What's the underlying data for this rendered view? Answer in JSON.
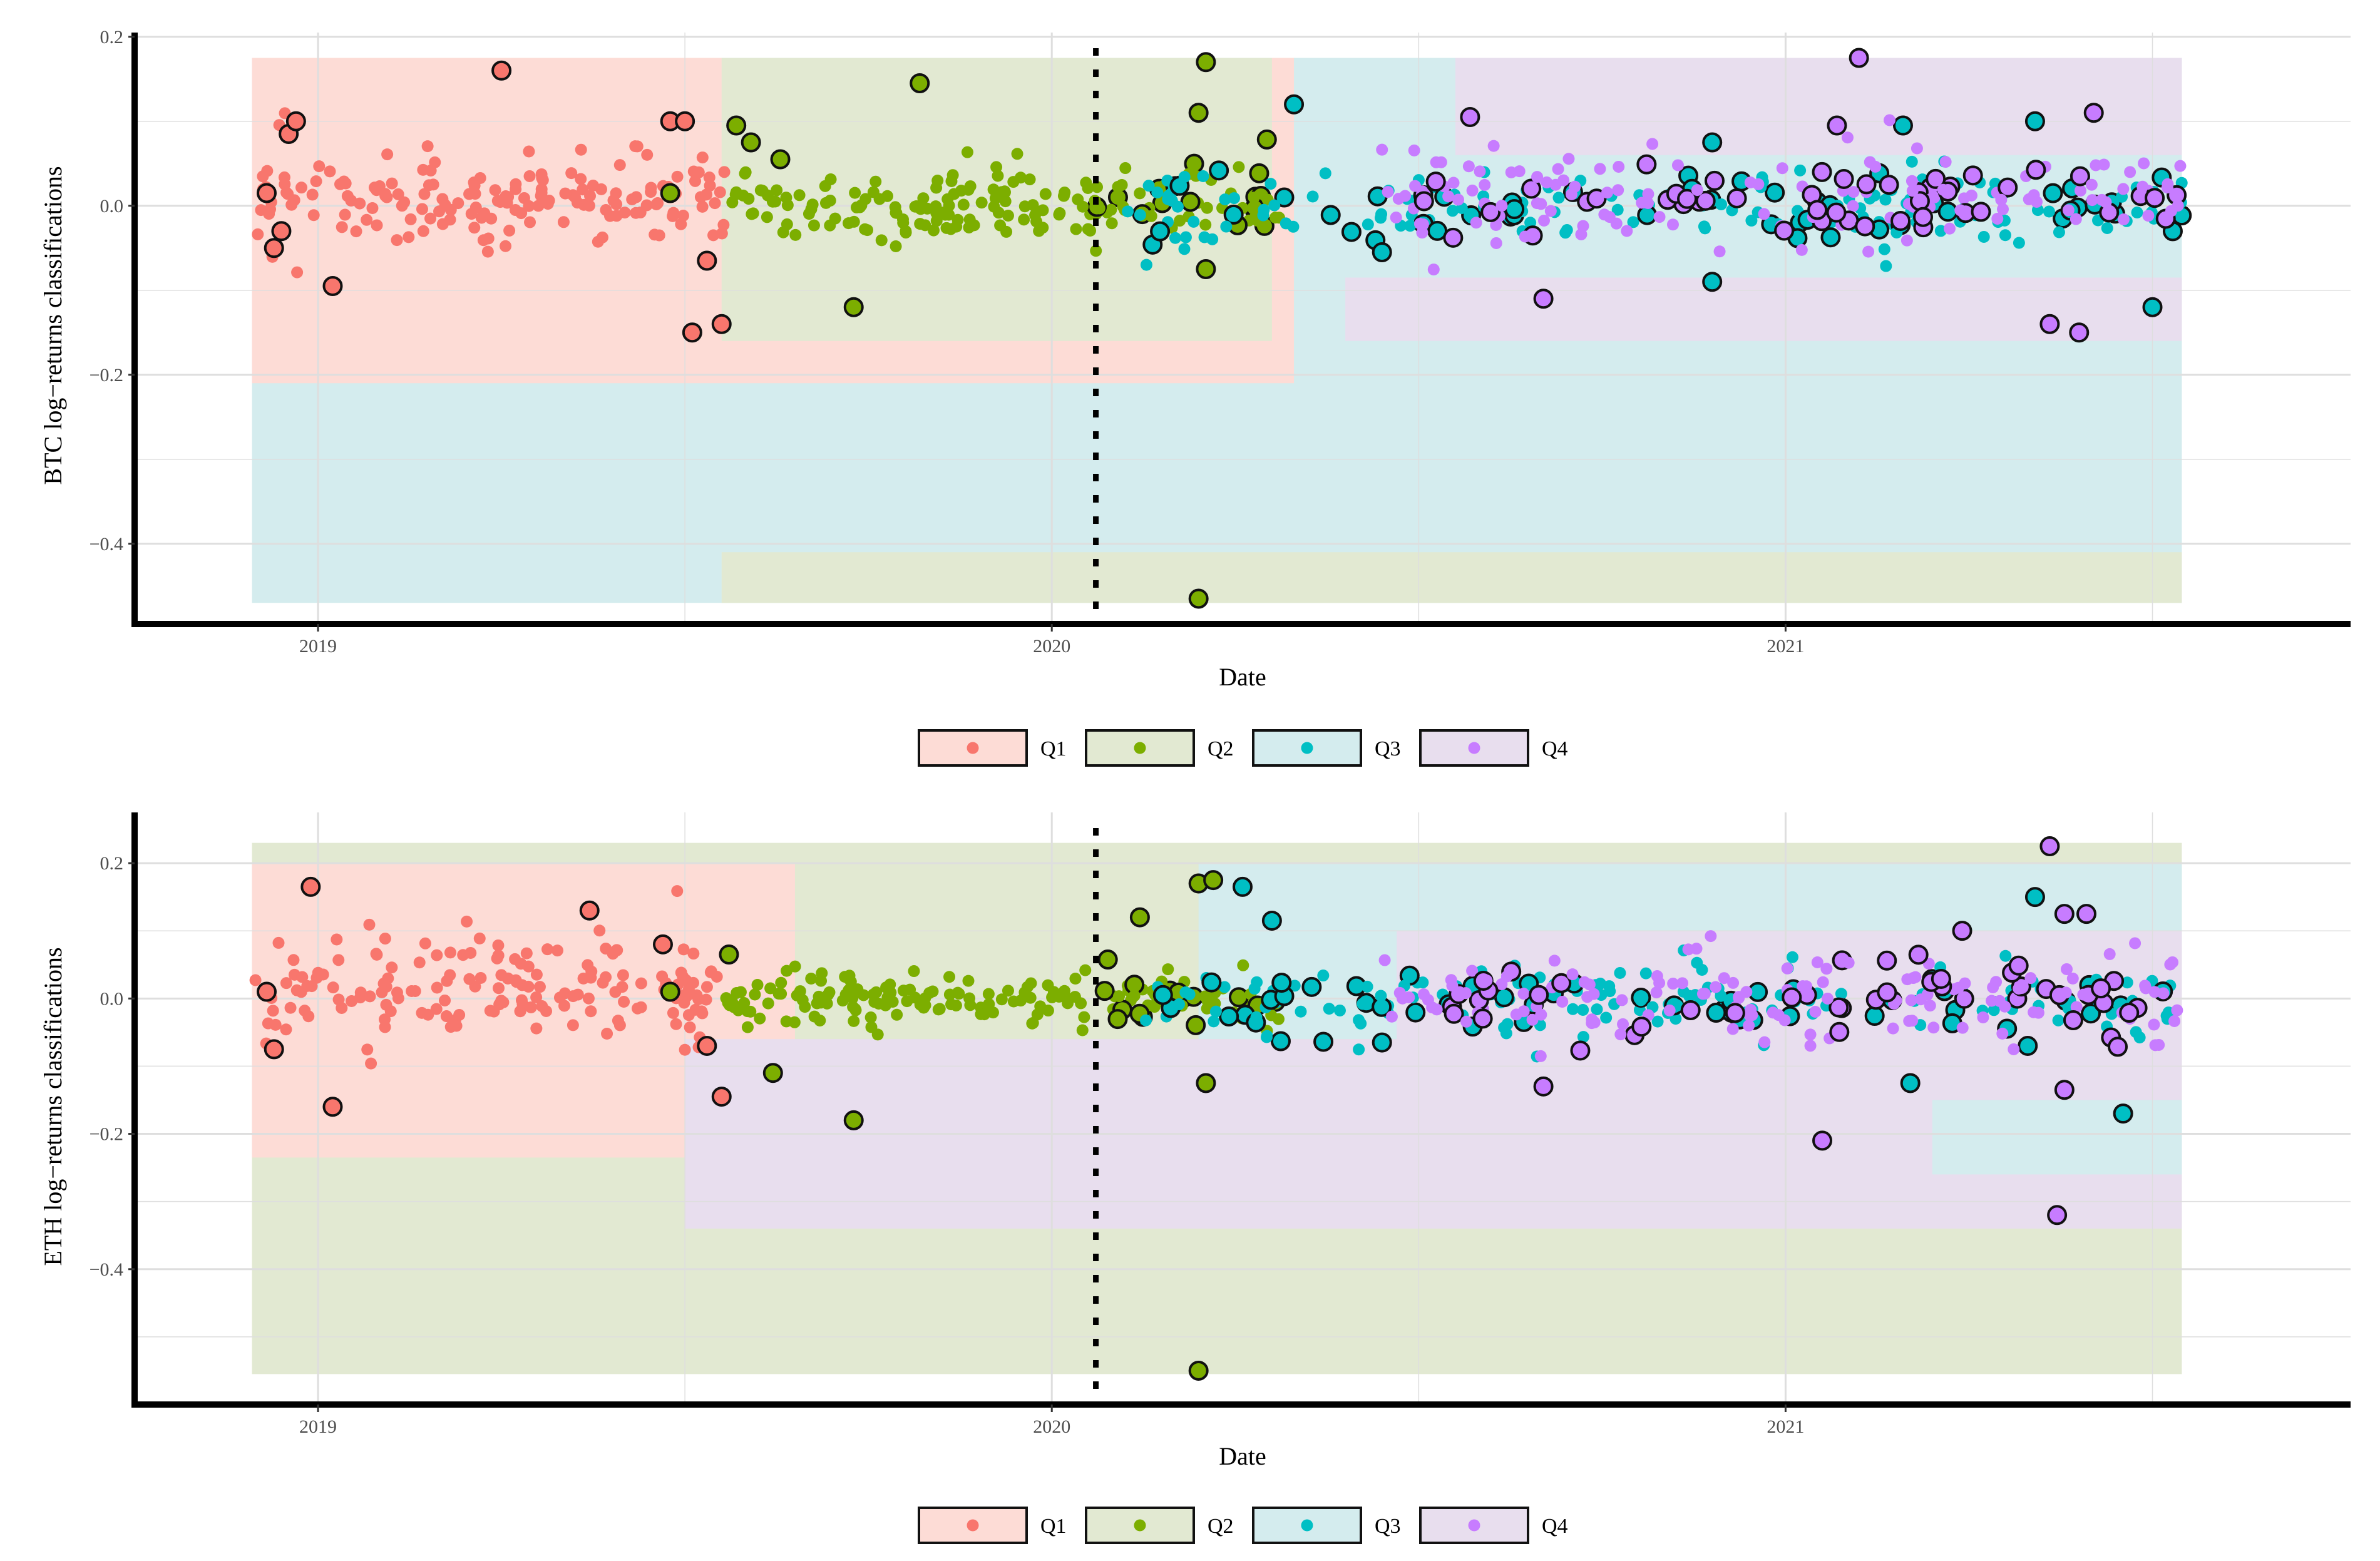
{
  "chart_data": [
    {
      "type": "scatter",
      "panel": "BTC",
      "xlabel": "Date",
      "ylabel": "BTC log−returns classifications",
      "xlim": [
        2018.75,
        2021.77
      ],
      "ylim": [
        -0.495,
        0.205
      ],
      "x_ticks": [
        {
          "value": 2019,
          "label": "2019"
        },
        {
          "value": 2020,
          "label": "2020"
        },
        {
          "value": 2021,
          "label": "2021"
        }
      ],
      "y_ticks": [
        {
          "value": 0.2,
          "label": "0.2"
        },
        {
          "value": 0.0,
          "label": "0.0"
        },
        {
          "value": -0.2,
          "label": "−0.2"
        },
        {
          "value": -0.4,
          "label": "−0.4"
        }
      ],
      "grid": true,
      "legend_position": "bottom",
      "split_date": 2020.06,
      "classes": [
        {
          "name": "Q1",
          "point_color": "#F8766D",
          "region_color": "#FDDCD6"
        },
        {
          "name": "Q2",
          "point_color": "#7CAE00",
          "region_color": "#E2E9D2"
        },
        {
          "name": "Q3",
          "point_color": "#00BFC4",
          "region_color": "#D4ECEE"
        },
        {
          "name": "Q4",
          "point_color": "#C77CFF",
          "region_color": "#E8DEEE"
        }
      ],
      "regions": [
        {
          "class": "Q3",
          "x": [
            2018.91,
            2021.54
          ],
          "y": [
            -0.47,
            0.175
          ]
        },
        {
          "class": "Q1",
          "x": [
            2018.91,
            2020.33
          ],
          "y": [
            -0.21,
            0.175
          ]
        },
        {
          "class": "Q2",
          "x": [
            2019.55,
            2021.54
          ],
          "y": [
            -0.47,
            -0.41
          ]
        },
        {
          "class": "Q2",
          "x": [
            2019.55,
            2020.3
          ],
          "y": [
            -0.16,
            0.175
          ]
        },
        {
          "class": "Q4",
          "x": [
            2020.4,
            2021.54
          ],
          "y": [
            -0.16,
            -0.085
          ]
        },
        {
          "class": "Q4",
          "x": [
            2020.55,
            2021.54
          ],
          "y": [
            0.06,
            0.175
          ]
        }
      ],
      "series": [
        {
          "name": "Q1",
          "x_range": [
            2018.91,
            2019.56
          ],
          "y_mean": 0.01,
          "y_sd": 0.04,
          "count": 170,
          "outliers": [
            [
              2018.93,
              0.015
            ],
            [
              2018.94,
              -0.05
            ],
            [
              2018.95,
              -0.03
            ],
            [
              2018.96,
              0.085
            ],
            [
              2018.97,
              0.1
            ],
            [
              2019.02,
              -0.095
            ],
            [
              2019.25,
              0.16
            ],
            [
              2019.48,
              0.1
            ],
            [
              2019.5,
              0.1
            ],
            [
              2019.51,
              -0.15
            ],
            [
              2019.53,
              -0.065
            ],
            [
              2019.55,
              -0.14
            ]
          ]
        },
        {
          "name": "Q2",
          "x_range": [
            2019.55,
            2020.31
          ],
          "y_mean": 0.0,
          "y_sd": 0.03,
          "count": 180,
          "outliers": [
            [
              2019.48,
              0.015
            ],
            [
              2019.57,
              0.095
            ],
            [
              2019.59,
              0.075
            ],
            [
              2019.63,
              0.055
            ],
            [
              2019.73,
              -0.12
            ],
            [
              2019.82,
              0.145
            ],
            [
              2020.21,
              0.17
            ],
            [
              2020.2,
              0.11
            ],
            [
              2020.21,
              -0.075
            ],
            [
              2020.2,
              -0.465
            ]
          ]
        },
        {
          "name": "Q3",
          "x_range": [
            2020.1,
            2021.54
          ],
          "y_mean": 0.0,
          "y_sd": 0.035,
          "count": 190,
          "outliers": [
            [
              2020.33,
              0.12
            ],
            [
              2020.45,
              -0.055
            ],
            [
              2020.9,
              -0.09
            ],
            [
              2020.9,
              0.075
            ],
            [
              2021.16,
              0.095
            ],
            [
              2021.34,
              0.1
            ],
            [
              2021.5,
              -0.12
            ]
          ]
        },
        {
          "name": "Q4",
          "x_range": [
            2020.45,
            2021.54
          ],
          "y_mean": 0.01,
          "y_sd": 0.04,
          "count": 190,
          "outliers": [
            [
              2020.57,
              0.105
            ],
            [
              2020.67,
              -0.11
            ],
            [
              2021.07,
              0.095
            ],
            [
              2021.1,
              0.175
            ],
            [
              2021.42,
              0.11
            ],
            [
              2021.4,
              -0.15
            ],
            [
              2021.36,
              -0.14
            ]
          ]
        }
      ]
    },
    {
      "type": "scatter",
      "panel": "ETH",
      "xlabel": "Date",
      "ylabel": "ETH log−returns classifications",
      "xlim": [
        2018.75,
        2021.77
      ],
      "ylim": [
        -0.6,
        0.275
      ],
      "x_ticks": [
        {
          "value": 2019,
          "label": "2019"
        },
        {
          "value": 2020,
          "label": "2020"
        },
        {
          "value": 2021,
          "label": "2021"
        }
      ],
      "y_ticks": [
        {
          "value": 0.2,
          "label": "0.2"
        },
        {
          "value": 0.0,
          "label": "0.0"
        },
        {
          "value": -0.2,
          "label": "−0.2"
        },
        {
          "value": -0.4,
          "label": "−0.4"
        }
      ],
      "grid": true,
      "legend_position": "bottom",
      "split_date": 2020.06,
      "classes": [
        {
          "name": "Q1",
          "point_color": "#F8766D",
          "region_color": "#FDDCD6"
        },
        {
          "name": "Q2",
          "point_color": "#7CAE00",
          "region_color": "#E2E9D2"
        },
        {
          "name": "Q3",
          "point_color": "#00BFC4",
          "region_color": "#D4ECEE"
        },
        {
          "name": "Q4",
          "point_color": "#C77CFF",
          "region_color": "#E8DEEE"
        }
      ],
      "regions": [
        {
          "class": "Q2",
          "x": [
            2018.91,
            2021.54
          ],
          "y": [
            -0.555,
            0.23
          ]
        },
        {
          "class": "Q1",
          "x": [
            2018.91,
            2019.65
          ],
          "y": [
            -0.235,
            0.2
          ]
        },
        {
          "class": "Q3",
          "x": [
            2020.2,
            2021.54
          ],
          "y": [
            -0.06,
            0.2
          ]
        },
        {
          "class": "Q4",
          "x": [
            2019.5,
            2021.54
          ],
          "y": [
            -0.34,
            -0.06
          ]
        },
        {
          "class": "Q4",
          "x": [
            2020.47,
            2021.54
          ],
          "y": [
            -0.06,
            0.1
          ]
        },
        {
          "class": "Q3",
          "x": [
            2021.2,
            2021.54
          ],
          "y": [
            -0.26,
            -0.15
          ]
        }
      ],
      "series": [
        {
          "name": "Q1",
          "x_range": [
            2018.91,
            2019.56
          ],
          "y_mean": 0.01,
          "y_sd": 0.05,
          "count": 170,
          "outliers": [
            [
              2018.93,
              0.01
            ],
            [
              2018.94,
              -0.075
            ],
            [
              2018.99,
              0.165
            ],
            [
              2019.02,
              -0.16
            ],
            [
              2019.37,
              0.13
            ],
            [
              2019.47,
              0.08
            ],
            [
              2019.55,
              -0.145
            ],
            [
              2019.53,
              -0.07
            ]
          ]
        },
        {
          "name": "Q2",
          "x_range": [
            2019.55,
            2020.31
          ],
          "y_mean": 0.0,
          "y_sd": 0.03,
          "count": 180,
          "outliers": [
            [
              2019.48,
              0.01
            ],
            [
              2019.56,
              0.065
            ],
            [
              2019.62,
              -0.11
            ],
            [
              2019.73,
              -0.18
            ],
            [
              2020.12,
              0.12
            ],
            [
              2020.2,
              0.17
            ],
            [
              2020.22,
              0.175
            ],
            [
              2020.21,
              -0.125
            ],
            [
              2020.2,
              -0.55
            ]
          ]
        },
        {
          "name": "Q3",
          "x_range": [
            2020.1,
            2021.54
          ],
          "y_mean": 0.0,
          "y_sd": 0.04,
          "count": 190,
          "outliers": [
            [
              2020.26,
              0.165
            ],
            [
              2020.3,
              0.115
            ],
            [
              2020.45,
              -0.065
            ],
            [
              2021.17,
              -0.125
            ],
            [
              2021.33,
              -0.07
            ],
            [
              2021.46,
              -0.17
            ],
            [
              2021.34,
              0.15
            ]
          ]
        },
        {
          "name": "Q4",
          "x_range": [
            2020.45,
            2021.54
          ],
          "y_mean": 0.0,
          "y_sd": 0.05,
          "count": 190,
          "outliers": [
            [
              2020.67,
              -0.13
            ],
            [
              2021.05,
              -0.21
            ],
            [
              2021.36,
              0.225
            ],
            [
              2021.37,
              -0.32
            ],
            [
              2021.38,
              0.125
            ],
            [
              2021.41,
              0.125
            ],
            [
              2021.38,
              -0.135
            ]
          ]
        }
      ]
    }
  ]
}
